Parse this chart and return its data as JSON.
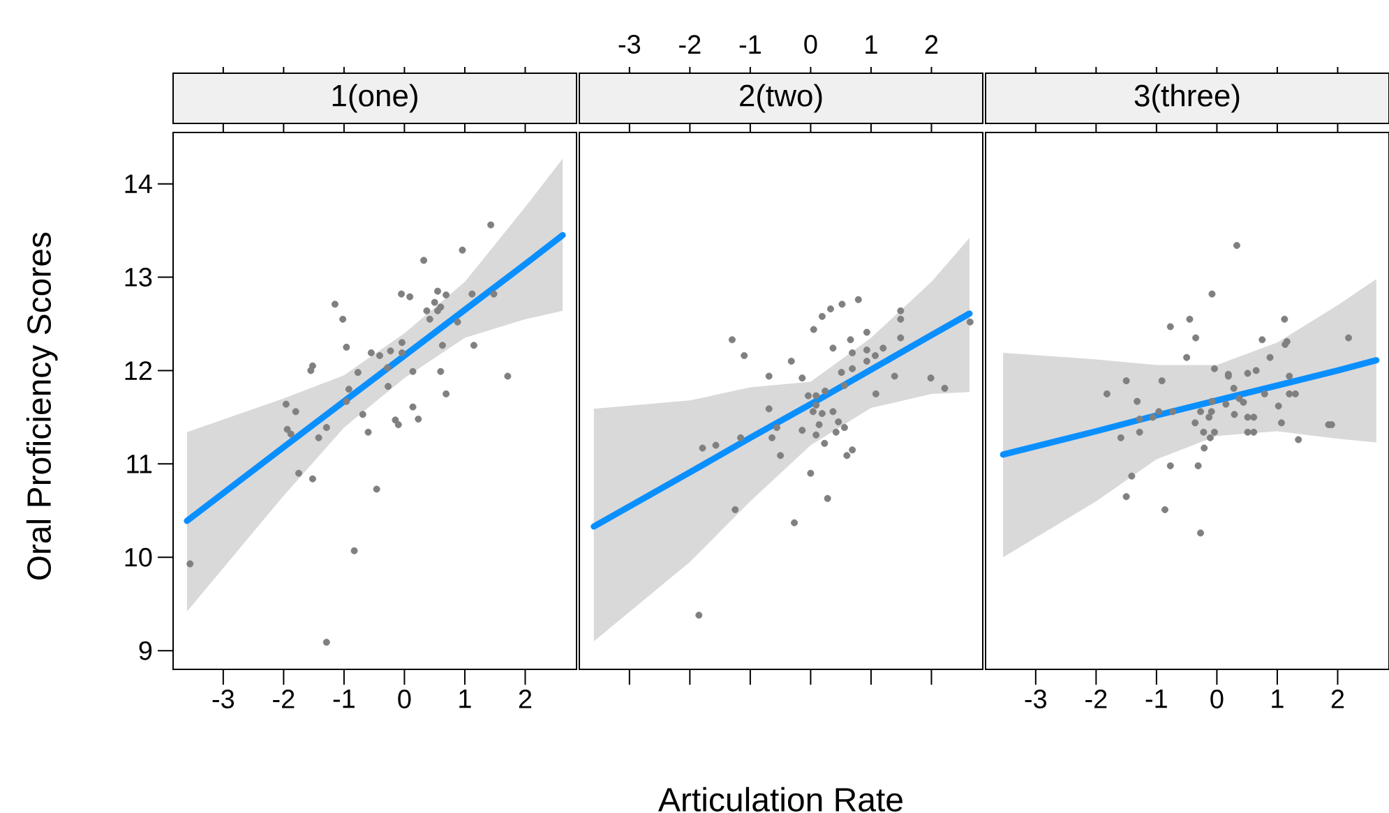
{
  "chart_data": [
    {
      "type": "scatter",
      "title": "1(one)",
      "ylabel": "Oral Proficiency Scores",
      "xlim": [
        -3.83,
        2.85
      ],
      "ylim": [
        8.8,
        14.55
      ],
      "xticks": [
        -3,
        -2,
        -1,
        0,
        1,
        2
      ],
      "yticks": [
        9,
        10,
        11,
        12,
        13,
        14
      ],
      "marker": "circle",
      "series": [
        {
          "color": "#808080",
          "x": [
            -3.55,
            -1.29,
            -0.83,
            -0.46,
            -1.75,
            -1.52,
            -1.94,
            -1.88,
            -1.42,
            -1.29,
            -1.96,
            -1.8,
            -0.69,
            -0.6,
            -0.96,
            -0.92,
            -0.27,
            -0.15,
            -0.1,
            0.14,
            0.23,
            0.69,
            0.14,
            0.6,
            -1.55,
            -1.52,
            -0.77,
            -0.28,
            -0.55,
            -0.41,
            -0.23,
            -0.04,
            -0.04,
            -0.96,
            -1.15,
            -1.02,
            -0.05,
            0.09,
            0.32,
            0.55,
            0.69,
            0.5,
            0.6,
            0.37,
            0.55,
            0.42,
            0.88,
            0.63,
            1.15,
            1.12,
            1.48,
            0.96,
            1.43,
            1.71
          ],
          "values": [
            9.93,
            9.09,
            10.07,
            10.73,
            10.9,
            10.84,
            11.37,
            11.32,
            11.28,
            11.39,
            11.64,
            11.56,
            11.53,
            11.34,
            11.67,
            11.8,
            11.83,
            11.47,
            11.42,
            11.61,
            11.48,
            11.75,
            11.99,
            11.99,
            12.0,
            12.05,
            11.98,
            12.03,
            12.19,
            12.16,
            12.21,
            12.3,
            12.19,
            12.25,
            12.71,
            12.55,
            12.82,
            12.79,
            13.18,
            12.85,
            12.81,
            12.73,
            12.68,
            12.64,
            12.64,
            12.55,
            12.52,
            12.27,
            12.27,
            12.82,
            12.82,
            13.29,
            13.56,
            11.94
          ]
        },
        {
          "type": "line",
          "color": "#0a8fff",
          "marker": "none",
          "x": [
            -3.6,
            -2,
            -1,
            0,
            1,
            2,
            2.62
          ],
          "values": [
            10.39,
            11.18,
            11.67,
            12.16,
            12.65,
            13.14,
            13.45
          ],
          "lower": [
            9.42,
            10.66,
            11.39,
            11.92,
            12.35,
            12.55,
            12.64
          ],
          "upper": [
            11.34,
            11.7,
            11.95,
            12.4,
            12.95,
            13.75,
            14.27
          ]
        }
      ]
    },
    {
      "type": "scatter",
      "title": "2(two)",
      "xlabel": "Articulation Rate",
      "xlim": [
        -3.83,
        2.85
      ],
      "ylim": [
        8.8,
        14.55
      ],
      "xticks": [
        -3,
        -2,
        -1,
        0,
        1,
        2
      ],
      "yticks": [
        9,
        10,
        11,
        12,
        13,
        14
      ],
      "tick_labels": "x",
      "marker": "circle",
      "series": [
        {
          "color": "#808080",
          "x": [
            -1.85,
            -1.25,
            -0.27,
            0.28,
            0.0,
            -1.79,
            -1.57,
            -1.16,
            -0.5,
            -0.64,
            -0.56,
            -0.69,
            -0.14,
            0.09,
            0.23,
            0.14,
            0.42,
            0.56,
            0.46,
            0.6,
            0.69,
            0.37,
            0.04,
            0.19,
            0.09,
            -0.04,
            0.09,
            0.24,
            0.56,
            0.51,
            0.69,
            -0.14,
            -0.69,
            -0.32,
            -1.3,
            -1.1,
            0.05,
            0.19,
            0.33,
            0.52,
            0.79,
            0.37,
            0.66,
            0.69,
            0.93,
            0.93,
            0.93,
            1.07,
            1.2,
            1.08,
            1.39,
            1.49,
            1.49,
            1.49,
            1.99,
            2.22,
            2.64
          ],
          "values": [
            9.38,
            10.51,
            10.37,
            10.63,
            10.9,
            11.17,
            11.2,
            11.28,
            11.09,
            11.28,
            11.39,
            11.59,
            11.36,
            11.31,
            11.22,
            11.42,
            11.34,
            11.39,
            11.45,
            11.09,
            11.15,
            11.56,
            11.56,
            11.54,
            11.63,
            11.73,
            11.73,
            11.78,
            11.84,
            11.98,
            12.02,
            11.92,
            11.94,
            12.1,
            12.33,
            12.16,
            12.44,
            12.58,
            12.66,
            12.71,
            12.76,
            12.24,
            12.33,
            12.19,
            12.41,
            12.22,
            12.1,
            12.16,
            12.24,
            11.75,
            11.94,
            12.64,
            12.55,
            12.35,
            11.92,
            11.81,
            12.52
          ]
        },
        {
          "type": "line",
          "color": "#0a8fff",
          "marker": "none",
          "x": [
            -3.59,
            -2,
            -1,
            0,
            1,
            2,
            2.63
          ],
          "values": [
            10.33,
            10.91,
            11.28,
            11.64,
            12.01,
            12.38,
            12.61
          ],
          "lower": [
            9.1,
            9.95,
            10.6,
            11.2,
            11.6,
            11.75,
            11.77
          ],
          "upper": [
            11.59,
            11.68,
            11.82,
            11.88,
            12.35,
            12.95,
            13.42
          ]
        }
      ]
    },
    {
      "type": "scatter",
      "title": "3(three)",
      "xlim": [
        -3.83,
        2.85
      ],
      "ylim": [
        8.8,
        14.55
      ],
      "xticks": [
        -3,
        -2,
        -1,
        0,
        1,
        2
      ],
      "yticks": [
        9,
        10,
        11,
        12,
        13,
        14
      ],
      "tick_labels": "x",
      "marker": "circle",
      "series": [
        {
          "color": "#808080",
          "x": [
            0.33,
            -0.08,
            -0.45,
            -0.77,
            -0.35,
            -0.5,
            0.75,
            1.12,
            1.13,
            1.16,
            0.88,
            2.18,
            -0.04,
            0.19,
            0.19,
            0.51,
            0.65,
            1.2,
            -1.5,
            -0.91,
            -1.82,
            -1.32,
            0.28,
            0.37,
            0.44,
            0.15,
            -0.08,
            0.79,
            1.2,
            1.3,
            1.02,
            -1.28,
            -1.06,
            -0.96,
            -0.73,
            -0.27,
            -0.09,
            -0.13,
            0.29,
            0.51,
            0.61,
            -0.36,
            1.07,
            -1.59,
            -1.28,
            -0.22,
            -0.04,
            -0.11,
            0.51,
            0.61,
            -0.21,
            1.35,
            1.85,
            1.9,
            -0.77,
            -0.31,
            -1.41,
            -1.5,
            -0.86,
            -0.27
          ],
          "values": [
            13.34,
            12.82,
            12.55,
            12.47,
            12.35,
            12.14,
            12.33,
            12.55,
            12.28,
            12.31,
            12.14,
            12.35,
            12.02,
            11.96,
            11.94,
            11.97,
            12.0,
            11.94,
            11.89,
            11.89,
            11.75,
            11.67,
            11.81,
            11.7,
            11.66,
            11.64,
            11.67,
            11.75,
            11.75,
            11.75,
            11.62,
            11.48,
            11.5,
            11.56,
            11.56,
            11.56,
            11.56,
            11.5,
            11.53,
            11.5,
            11.5,
            11.44,
            11.44,
            11.28,
            11.34,
            11.34,
            11.34,
            11.28,
            11.34,
            11.34,
            11.17,
            11.26,
            11.42,
            11.42,
            10.98,
            10.98,
            10.87,
            10.65,
            10.51,
            10.26
          ]
        },
        {
          "type": "line",
          "color": "#0a8fff",
          "marker": "none",
          "x": [
            -3.54,
            -2,
            -1,
            0,
            1,
            2,
            2.64
          ],
          "values": [
            11.1,
            11.35,
            11.52,
            11.68,
            11.84,
            12.0,
            12.11
          ],
          "lower": [
            10.0,
            10.6,
            11.05,
            11.3,
            11.35,
            11.27,
            11.23
          ],
          "upper": [
            12.19,
            12.12,
            12.06,
            12.06,
            12.3,
            12.7,
            12.98
          ]
        }
      ]
    }
  ]
}
